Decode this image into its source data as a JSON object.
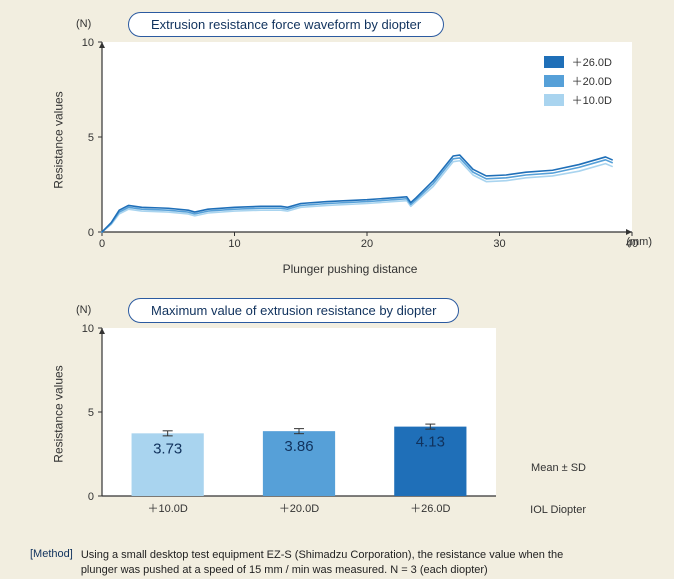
{
  "background_color": "#f2eee0",
  "line_chart": {
    "type": "line",
    "title": "Extrusion resistance force waveform by diopter",
    "y_unit": "(N)",
    "x_unit": "(mm)",
    "y_axis_label": "Resistance values",
    "x_axis_label": "Plunger pushing distance",
    "xlim": [
      0,
      40
    ],
    "ylim": [
      0,
      10
    ],
    "xtick_step": 10,
    "ytick_step": 5,
    "axis_color": "#333333",
    "grid_color": "none",
    "plot_bg": "#ffffff",
    "legend": [
      {
        "label": "＋26.0D",
        "color": "#1f6fb8"
      },
      {
        "label": "＋20.0D",
        "color": "#56a0d8"
      },
      {
        "label": "＋10.0D",
        "color": "#a9d4ef"
      }
    ],
    "series": [
      {
        "name": "＋26.0D",
        "color": "#1f6fb8",
        "width": 1.6,
        "data": [
          [
            0,
            0
          ],
          [
            0.7,
            0.5
          ],
          [
            1.3,
            1.15
          ],
          [
            2,
            1.4
          ],
          [
            3,
            1.3
          ],
          [
            5,
            1.25
          ],
          [
            6.5,
            1.15
          ],
          [
            7,
            1.05
          ],
          [
            8,
            1.2
          ],
          [
            10,
            1.3
          ],
          [
            12,
            1.35
          ],
          [
            13.5,
            1.35
          ],
          [
            14,
            1.3
          ],
          [
            15,
            1.5
          ],
          [
            17,
            1.6
          ],
          [
            20,
            1.7
          ],
          [
            22,
            1.8
          ],
          [
            23,
            1.85
          ],
          [
            23.3,
            1.55
          ],
          [
            23.7,
            1.8
          ],
          [
            25,
            2.7
          ],
          [
            26.5,
            4.0
          ],
          [
            27,
            4.05
          ],
          [
            28,
            3.3
          ],
          [
            29,
            2.95
          ],
          [
            30.5,
            3.0
          ],
          [
            32,
            3.15
          ],
          [
            34,
            3.25
          ],
          [
            36,
            3.55
          ],
          [
            38,
            3.95
          ],
          [
            38.5,
            3.8
          ]
        ]
      },
      {
        "name": "＋20.0D",
        "color": "#56a0d8",
        "width": 1.6,
        "data": [
          [
            0,
            0
          ],
          [
            0.7,
            0.45
          ],
          [
            1.3,
            1.05
          ],
          [
            2,
            1.3
          ],
          [
            3,
            1.2
          ],
          [
            5,
            1.15
          ],
          [
            6.5,
            1.05
          ],
          [
            7,
            0.95
          ],
          [
            8,
            1.1
          ],
          [
            10,
            1.2
          ],
          [
            12,
            1.25
          ],
          [
            13.5,
            1.25
          ],
          [
            14,
            1.2
          ],
          [
            15,
            1.4
          ],
          [
            17,
            1.5
          ],
          [
            20,
            1.6
          ],
          [
            22,
            1.7
          ],
          [
            23,
            1.75
          ],
          [
            23.3,
            1.45
          ],
          [
            23.7,
            1.7
          ],
          [
            25,
            2.55
          ],
          [
            26.5,
            3.85
          ],
          [
            27,
            3.9
          ],
          [
            28,
            3.15
          ],
          [
            29,
            2.8
          ],
          [
            30.5,
            2.85
          ],
          [
            32,
            3.0
          ],
          [
            34,
            3.1
          ],
          [
            36,
            3.4
          ],
          [
            38,
            3.8
          ],
          [
            38.5,
            3.65
          ]
        ]
      },
      {
        "name": "＋10.0D",
        "color": "#a9d4ef",
        "width": 1.6,
        "data": [
          [
            0,
            0
          ],
          [
            0.7,
            0.4
          ],
          [
            1.3,
            0.95
          ],
          [
            2,
            1.2
          ],
          [
            3,
            1.1
          ],
          [
            5,
            1.05
          ],
          [
            6.5,
            0.95
          ],
          [
            7,
            0.85
          ],
          [
            8,
            1.0
          ],
          [
            10,
            1.1
          ],
          [
            12,
            1.15
          ],
          [
            13.5,
            1.15
          ],
          [
            14,
            1.1
          ],
          [
            15,
            1.3
          ],
          [
            17,
            1.4
          ],
          [
            20,
            1.5
          ],
          [
            22,
            1.6
          ],
          [
            23,
            1.65
          ],
          [
            23.3,
            1.35
          ],
          [
            23.7,
            1.6
          ],
          [
            25,
            2.4
          ],
          [
            26.5,
            3.7
          ],
          [
            27,
            3.75
          ],
          [
            28,
            3.0
          ],
          [
            29,
            2.65
          ],
          [
            30.5,
            2.7
          ],
          [
            32,
            2.85
          ],
          [
            34,
            2.95
          ],
          [
            36,
            3.2
          ],
          [
            38,
            3.6
          ],
          [
            38.5,
            3.45
          ]
        ]
      }
    ]
  },
  "bar_chart": {
    "type": "bar",
    "title": "Maximum value of extrusion resistance by diopter",
    "y_unit": "(N)",
    "y_axis_label": "Resistance values",
    "ylim": [
      0,
      10
    ],
    "ytick_step": 5,
    "plot_bg": "#ffffff",
    "axis_color": "#333333",
    "bar_width": 0.55,
    "categories": [
      "＋10.0D",
      "＋20.0D",
      "＋26.0D"
    ],
    "values": [
      3.73,
      3.86,
      4.13
    ],
    "errors": [
      0.15,
      0.15,
      0.15
    ],
    "bar_colors": [
      "#a9d4ef",
      "#56a0d8",
      "#1f6fb8"
    ],
    "right_label": "Mean ± SD",
    "x_footer_label": "IOL Diopter"
  },
  "method": {
    "tag": "[Method]",
    "text": "Using a small desktop test equipment EZ-S (Shimadzu Corporation), the resistance value when the plunger was pushed at a speed of 15 mm / min was measured. N = 3 (each diopter)"
  }
}
